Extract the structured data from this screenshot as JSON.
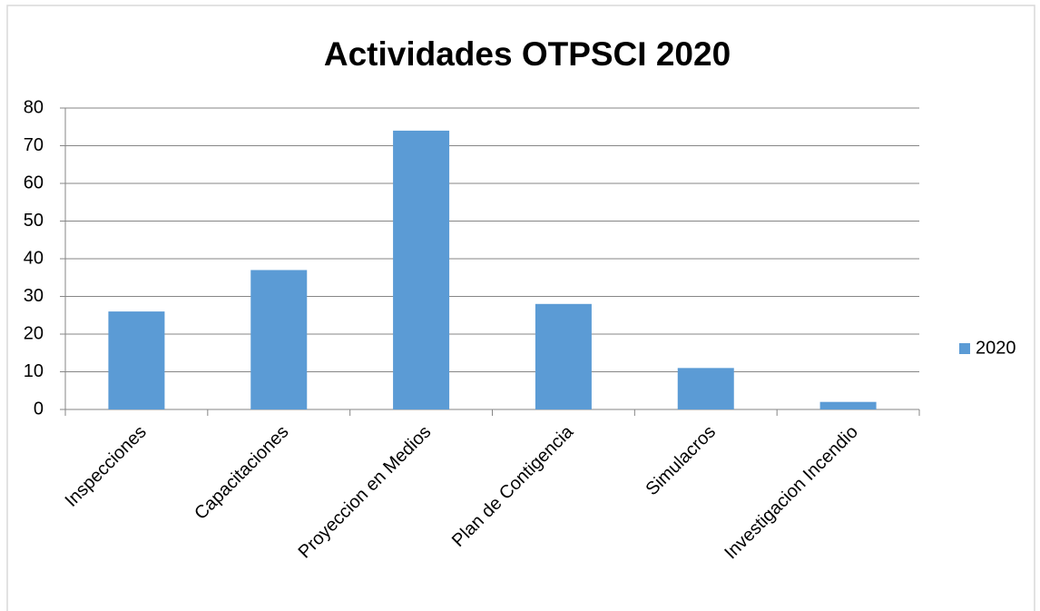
{
  "chart_data": {
    "type": "bar",
    "title": "Actividades OTPSCI 2020",
    "categories": [
      "Inspecciones",
      "Capacitaciones",
      "Proyeccion en Medios",
      "Plan de Contigencia",
      "Simulacros",
      "Investigacion Incendio"
    ],
    "series": [
      {
        "name": "2020",
        "color": "#5b9bd5",
        "values": [
          26,
          37,
          74,
          28,
          11,
          2
        ]
      }
    ],
    "ylim": [
      0,
      80
    ],
    "yticks": [
      0,
      10,
      20,
      30,
      40,
      50,
      60,
      70,
      80
    ],
    "grid": true,
    "legend": "right"
  }
}
